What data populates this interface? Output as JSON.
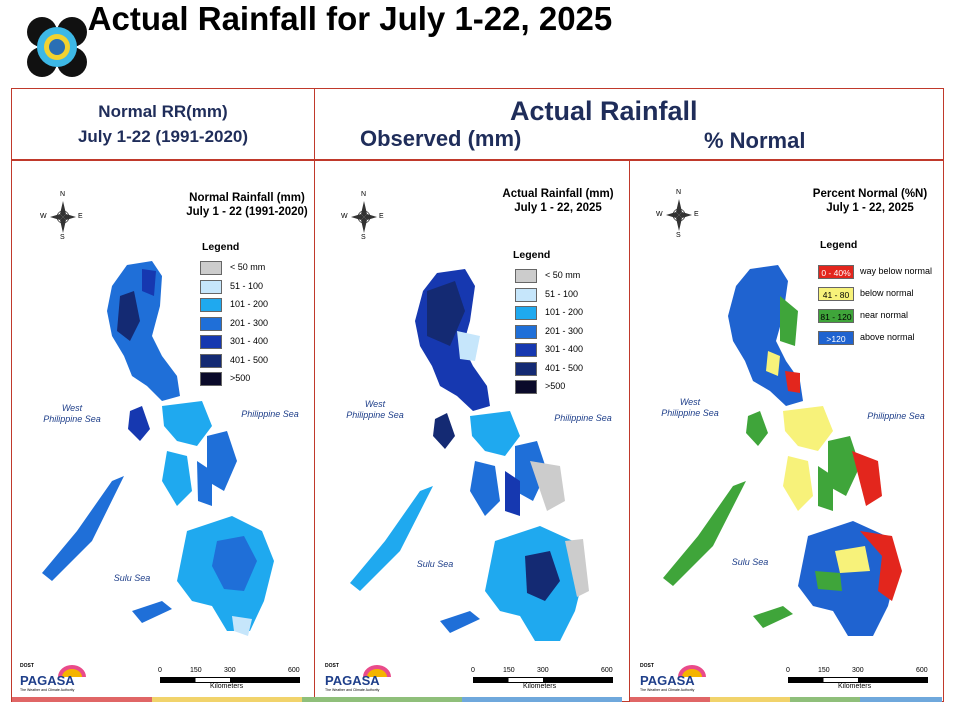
{
  "title": "Actual Rainfall for July 1-22, 2025",
  "header": {
    "normal_line1": "Normal RR(mm)",
    "normal_line2": "July 1-22 (1991-2020)",
    "actual_title": "Actual Rainfall",
    "observed_label": "Observed (mm)",
    "percent_label": "% Normal"
  },
  "panels": [
    {
      "map_title_1": "Normal Rainfall (mm)",
      "map_title_2": "July 1 - 22 (1991-2020)",
      "legend_title": "Legend",
      "legend": [
        {
          "label": "< 50 mm",
          "color": "#cccccc"
        },
        {
          "label": "51 - 100",
          "color": "#c6e6fb"
        },
        {
          "label": "101 - 200",
          "color": "#1fa9ef"
        },
        {
          "label": "201 - 300",
          "color": "#1f6fd8"
        },
        {
          "label": "301 - 400",
          "color": "#1638b0"
        },
        {
          "label": "401 - 500",
          "color": "#142a73"
        },
        {
          "label": ">500",
          "color": "#0a0a2a"
        }
      ],
      "sea_west_1": "West",
      "sea_west_2": "Philippine Sea",
      "sea_east": "Philippine Sea",
      "sea_sulu": "Sulu Sea"
    },
    {
      "map_title_1": "Actual Rainfall (mm)",
      "map_title_2": "July 1 - 22, 2025",
      "legend_title": "Legend",
      "legend": [
        {
          "label": "< 50 mm",
          "color": "#cccccc"
        },
        {
          "label": "51 - 100",
          "color": "#c6e6fb"
        },
        {
          "label": "101 - 200",
          "color": "#1fa9ef"
        },
        {
          "label": "201 - 300",
          "color": "#1f6fd8"
        },
        {
          "label": "301 - 400",
          "color": "#1638b0"
        },
        {
          "label": "401 - 500",
          "color": "#142a73"
        },
        {
          "label": ">500",
          "color": "#0a0a2a"
        }
      ],
      "sea_west_1": "West",
      "sea_west_2": "Philippine Sea",
      "sea_east": "Philippine Sea",
      "sea_sulu": "Sulu Sea"
    },
    {
      "map_title_1": "Percent Normal (%N)",
      "map_title_2": "July 1 - 22, 2025",
      "legend_title": "Legend",
      "legend": [
        {
          "range": "0 - 40%",
          "label": "way below normal",
          "color": "#e3261d",
          "text_color": "#ffffff"
        },
        {
          "range": "41 - 80",
          "label": "below normal",
          "color": "#f7f27a",
          "text_color": "#000000"
        },
        {
          "range": "81 - 120",
          "label": "near normal",
          "color": "#3fa53a",
          "text_color": "#000000"
        },
        {
          "range": ">120",
          "label": "above normal",
          "color": "#1f63d0",
          "text_color": "#ffffff"
        }
      ],
      "sea_west_1": "West",
      "sea_west_2": "Philippine Sea",
      "sea_east": "Philippine Sea",
      "sea_sulu": "Sulu Sea"
    }
  ],
  "compass": {
    "n": "N",
    "s": "S",
    "e": "E",
    "w": "W"
  },
  "scale": {
    "ticks": [
      "0",
      "150",
      "300",
      "600"
    ],
    "unit": "Kilometers"
  },
  "logo": {
    "top": "DOST",
    "brand": "PAGASA",
    "tagline": "The Weather and Climate Authority"
  },
  "colors": {
    "stripe_red": "#e06666",
    "stripe_yellow": "#f1d36b",
    "stripe_green": "#8fbf7a",
    "stripe_blue": "#6fa8dc"
  }
}
